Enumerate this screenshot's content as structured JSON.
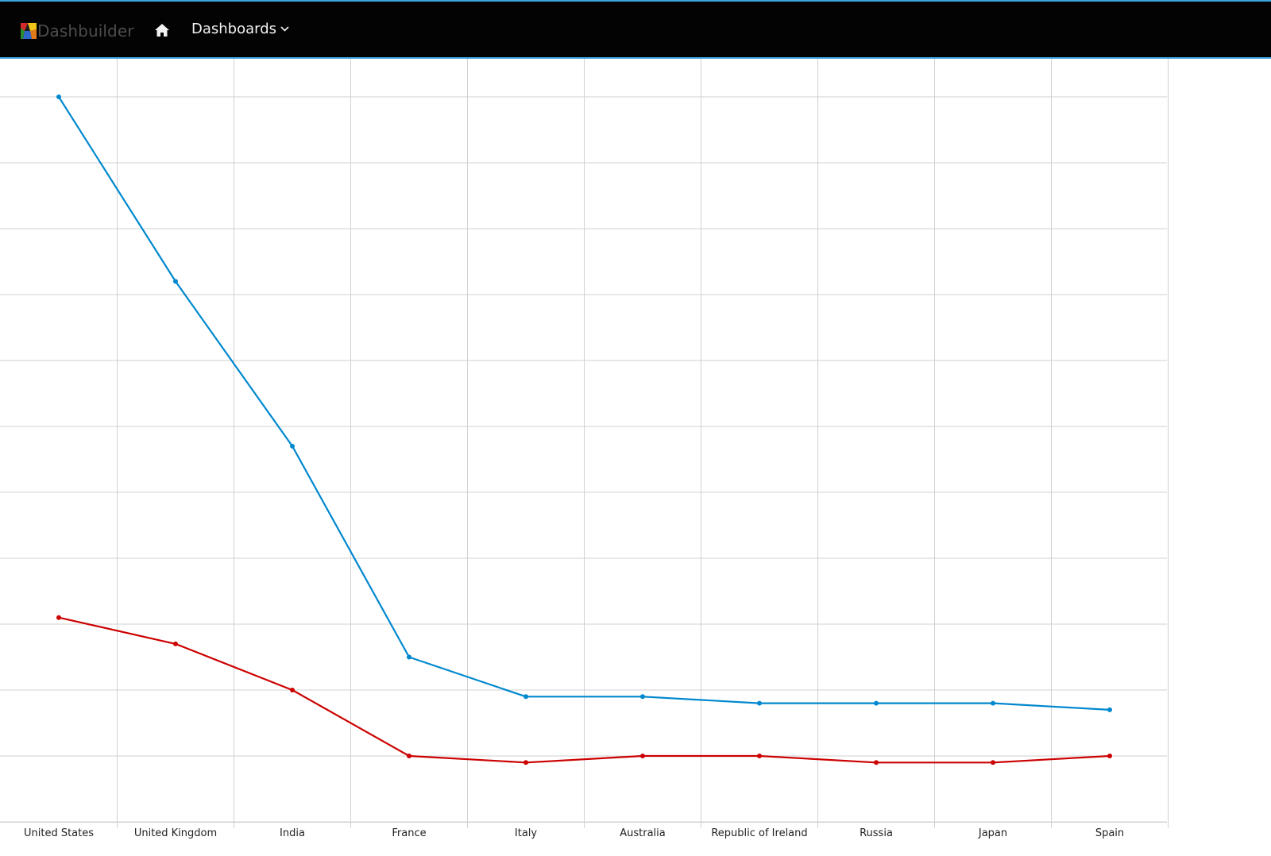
{
  "navbar": {
    "brand": "Dashbuilder",
    "brand_icon": "dashbuilder-logo-icon",
    "home_icon": "home-icon",
    "menu_label": "Dashboards",
    "menu_icon": "chevron-down-icon",
    "accent_color": "#39a5dc",
    "background_color": "#030303"
  },
  "chart_data": {
    "type": "line",
    "categories": [
      "United States",
      "United Kingdom",
      "India",
      "France",
      "Italy",
      "Australia",
      "Republic of Ireland",
      "Russia",
      "Japan",
      "Spain"
    ],
    "series": [
      {
        "color": "#0088ce",
        "values": [
          11.2,
          8.4,
          5.9,
          2.7,
          2.1,
          2.1,
          2.0,
          2.0,
          2.0,
          1.9
        ]
      },
      {
        "color": "#cc0000",
        "values": [
          3.3,
          2.9,
          2.2,
          1.2,
          1.1,
          1.2,
          1.2,
          1.1,
          1.1,
          1.2
        ]
      }
    ],
    "ylim": [
      0.2,
      12.0
    ],
    "grid": true
  }
}
